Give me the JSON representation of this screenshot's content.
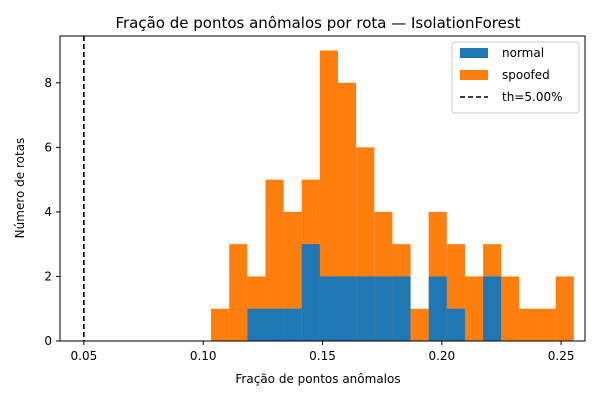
{
  "chart_data": {
    "type": "bar",
    "title": "Fração de pontos anômalos por rota — IsolationForest",
    "xlabel": "Fração de pontos anômalos",
    "ylabel": "Número de rotas",
    "xlim": [
      0.04,
      0.26
    ],
    "ylim": [
      0,
      9.45
    ],
    "xticks": [
      "0.05",
      "0.10",
      "0.15",
      "0.20",
      "0.25"
    ],
    "yticks": [
      "0",
      "2",
      "4",
      "6",
      "8"
    ],
    "grid": false,
    "legend_position": "top-right",
    "bins": [
      [
        0.1033,
        0.1109
      ],
      [
        0.1109,
        0.1185
      ],
      [
        0.1185,
        0.1261
      ],
      [
        0.1261,
        0.1337
      ],
      [
        0.1337,
        0.1413
      ],
      [
        0.1413,
        0.1489
      ],
      [
        0.1489,
        0.1565
      ],
      [
        0.1565,
        0.1641
      ],
      [
        0.1641,
        0.1717
      ],
      [
        0.1717,
        0.1793
      ],
      [
        0.1793,
        0.1869
      ],
      [
        0.1869,
        0.1945
      ],
      [
        0.1945,
        0.2021
      ],
      [
        0.2021,
        0.2097
      ],
      [
        0.2097,
        0.2173
      ],
      [
        0.2173,
        0.2249
      ],
      [
        0.2249,
        0.2325
      ],
      [
        0.2325,
        0.2401
      ],
      [
        0.2401,
        0.2477
      ],
      [
        0.2477,
        0.2553
      ]
    ],
    "series": [
      {
        "name": "normal",
        "color": "#1f77b4",
        "values": [
          0,
          0,
          1,
          1,
          1,
          3,
          2,
          2,
          2,
          2,
          2,
          0,
          2,
          1,
          0,
          2,
          0,
          0,
          0,
          0
        ]
      },
      {
        "name": "spoofed",
        "color": "#ff7f0e",
        "values": [
          1,
          3,
          2,
          5,
          4,
          5,
          9,
          8,
          6,
          4,
          3,
          1,
          4,
          3,
          2,
          3,
          2,
          1,
          1,
          2
        ]
      }
    ],
    "threshold": {
      "value": 0.05,
      "label": "th=5.00%",
      "color": "#000000"
    }
  }
}
